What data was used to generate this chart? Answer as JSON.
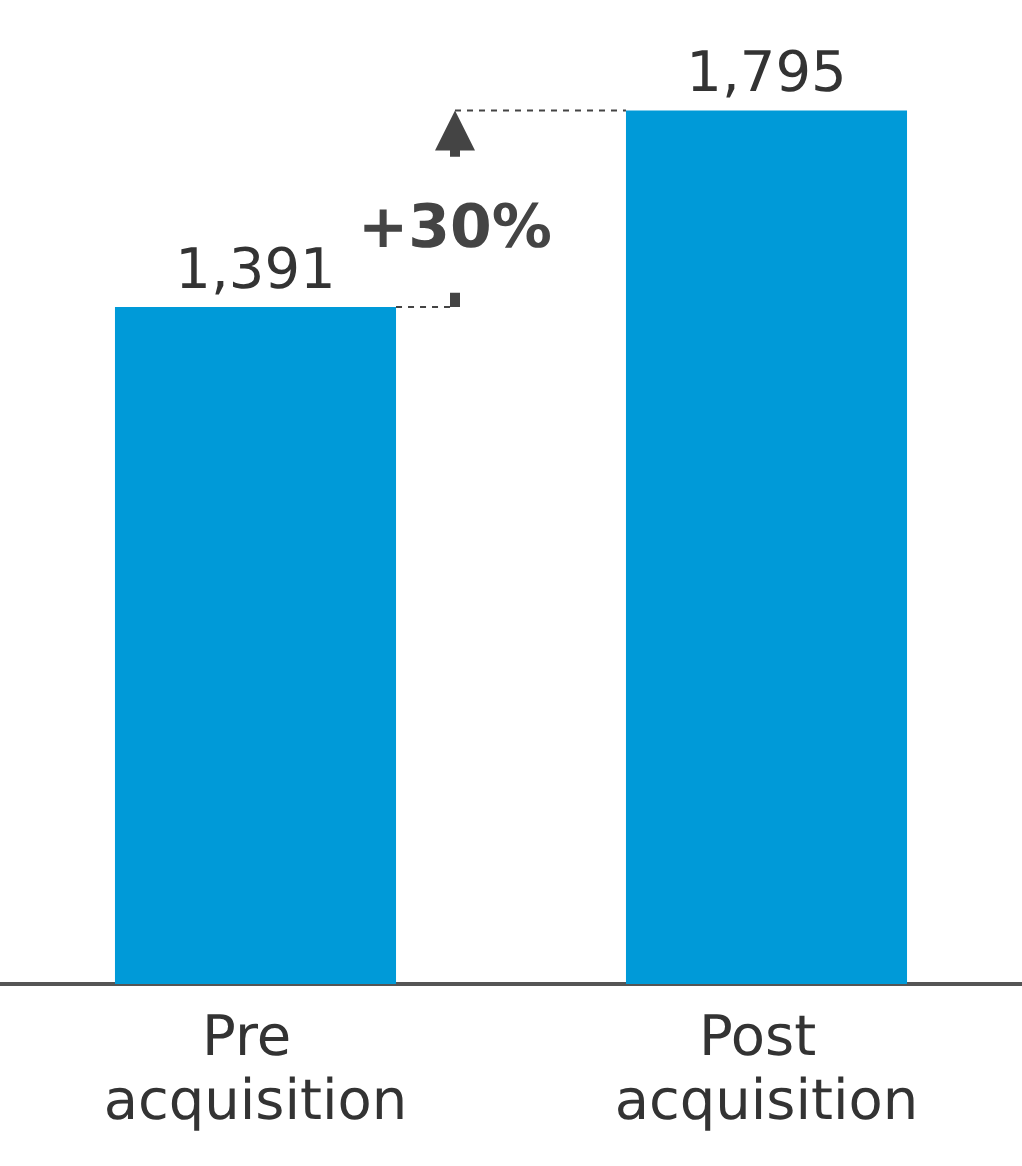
{
  "chart_data": {
    "type": "bar",
    "categories": [
      "Pre acquisition",
      "Post acquisition"
    ],
    "values": [
      1391,
      1795
    ],
    "value_labels": [
      "1,391",
      "1,795"
    ],
    "color": "#009ad8",
    "annotations": [
      "+30%"
    ]
  }
}
